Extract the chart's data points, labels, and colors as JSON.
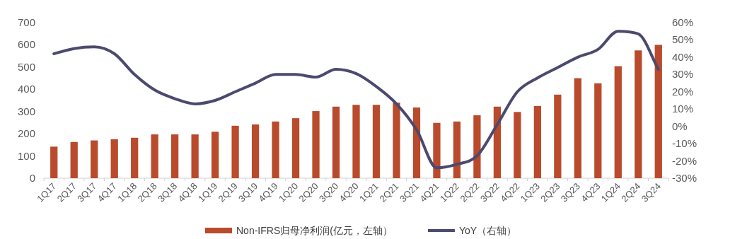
{
  "chart_data": {
    "type": "bar",
    "categories": [
      "1Q17",
      "2Q17",
      "3Q17",
      "4Q17",
      "1Q18",
      "2Q18",
      "3Q18",
      "4Q18",
      "1Q19",
      "2Q19",
      "3Q19",
      "4Q19",
      "1Q20",
      "2Q20",
      "3Q20",
      "4Q20",
      "1Q21",
      "2Q21",
      "3Q21",
      "4Q21",
      "1Q22",
      "2Q22",
      "3Q22",
      "4Q22",
      "1Q23",
      "2Q23",
      "3Q23",
      "4Q23",
      "1Q24",
      "2Q24",
      "3Q24"
    ],
    "series": [
      {
        "name": "Non-IFRS归母净利润(亿元，左轴）",
        "color": "#b94a2c",
        "values": [
          142,
          163,
          170,
          175,
          182,
          197,
          197,
          197,
          209,
          236,
          242,
          255,
          270,
          302,
          322,
          330,
          330,
          340,
          318,
          249,
          255,
          283,
          322,
          298,
          325,
          376,
          450,
          427,
          504,
          575,
          600
        ]
      },
      {
        "name": "YoY（右轴）",
        "type": "line",
        "axis": "y2",
        "color": "#4b4a6e",
        "values": [
          42,
          45,
          46,
          42,
          30,
          21,
          16,
          13,
          15,
          20,
          25,
          30,
          30,
          28.5,
          33,
          30.5,
          23,
          13,
          -2,
          -24,
          -22,
          -17,
          1,
          20,
          28,
          34,
          40,
          44.5,
          55,
          53.5,
          33
        ]
      }
    ],
    "ylim": [
      0,
      700
    ],
    "yticks": [
      0,
      100,
      200,
      300,
      400,
      500,
      600,
      700
    ],
    "y2lim": [
      -30,
      60
    ],
    "y2ticks": [
      {
        "value": -30,
        "label": "-30%"
      },
      {
        "value": -20,
        "label": "-20%"
      },
      {
        "value": -10,
        "label": "-10%"
      },
      {
        "value": 0,
        "label": "0%"
      },
      {
        "value": 10,
        "label": "10%"
      },
      {
        "value": 20,
        "label": "20%"
      },
      {
        "value": 30,
        "label": "30%"
      },
      {
        "value": 40,
        "label": "40%"
      },
      {
        "value": 50,
        "label": "50%"
      },
      {
        "value": 60,
        "label": "60%"
      }
    ],
    "legend": "bottom",
    "grid": false
  }
}
